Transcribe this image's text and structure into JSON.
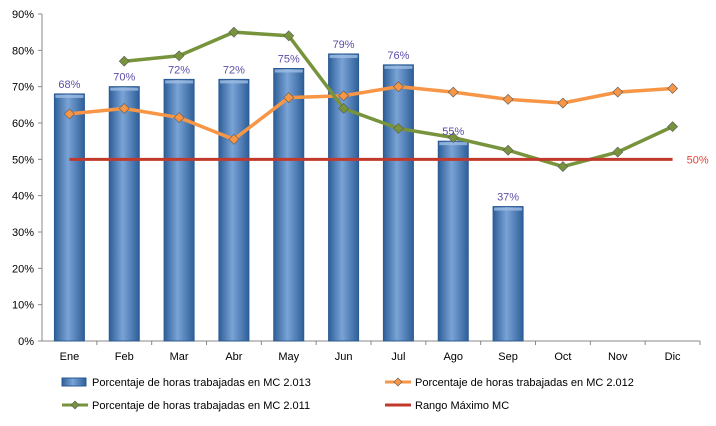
{
  "chart_data": {
    "type": "bar",
    "categories": [
      "Ene",
      "Feb",
      "Mar",
      "Abr",
      "May",
      "Jun",
      "Jul",
      "Ago",
      "Sep",
      "Oct",
      "Nov",
      "Dic"
    ],
    "ylim": [
      0,
      90
    ],
    "yticks": [
      "0%",
      "10%",
      "20%",
      "30%",
      "40%",
      "50%",
      "60%",
      "70%",
      "80%",
      "90%"
    ],
    "grid": false,
    "legend_position": "bottom",
    "series": [
      {
        "name": "Porcentaje de horas trabajadas en MC 2.013",
        "type": "bar",
        "color": "#4f81bd",
        "values": [
          68,
          70,
          72,
          72,
          75,
          79,
          76,
          55,
          37,
          null,
          null,
          null
        ],
        "labels": [
          "68%",
          "70%",
          "72%",
          "72%",
          "75%",
          "79%",
          "76%",
          "55%",
          "37%",
          "",
          "",
          ""
        ]
      },
      {
        "name": "Porcentaje de horas trabajadas en MC 2.012",
        "type": "line",
        "color": "#f79646",
        "values": [
          62.5,
          64,
          61.5,
          55.5,
          67,
          67.5,
          70,
          68.5,
          66.5,
          65.5,
          68.5,
          69.5
        ]
      },
      {
        "name": "Porcentaje de horas trabajadas en MC 2.011",
        "type": "line",
        "color": "#77933c",
        "values": [
          null,
          77,
          78.5,
          85,
          84,
          64,
          58.5,
          56,
          52.5,
          48,
          52,
          59
        ]
      },
      {
        "name": "Rango Máximo MC",
        "type": "line",
        "color": "#c0392b",
        "values": [
          50,
          50,
          50,
          50,
          50,
          50,
          50,
          50,
          50,
          50,
          50,
          50
        ],
        "end_label": "50%"
      }
    ]
  }
}
